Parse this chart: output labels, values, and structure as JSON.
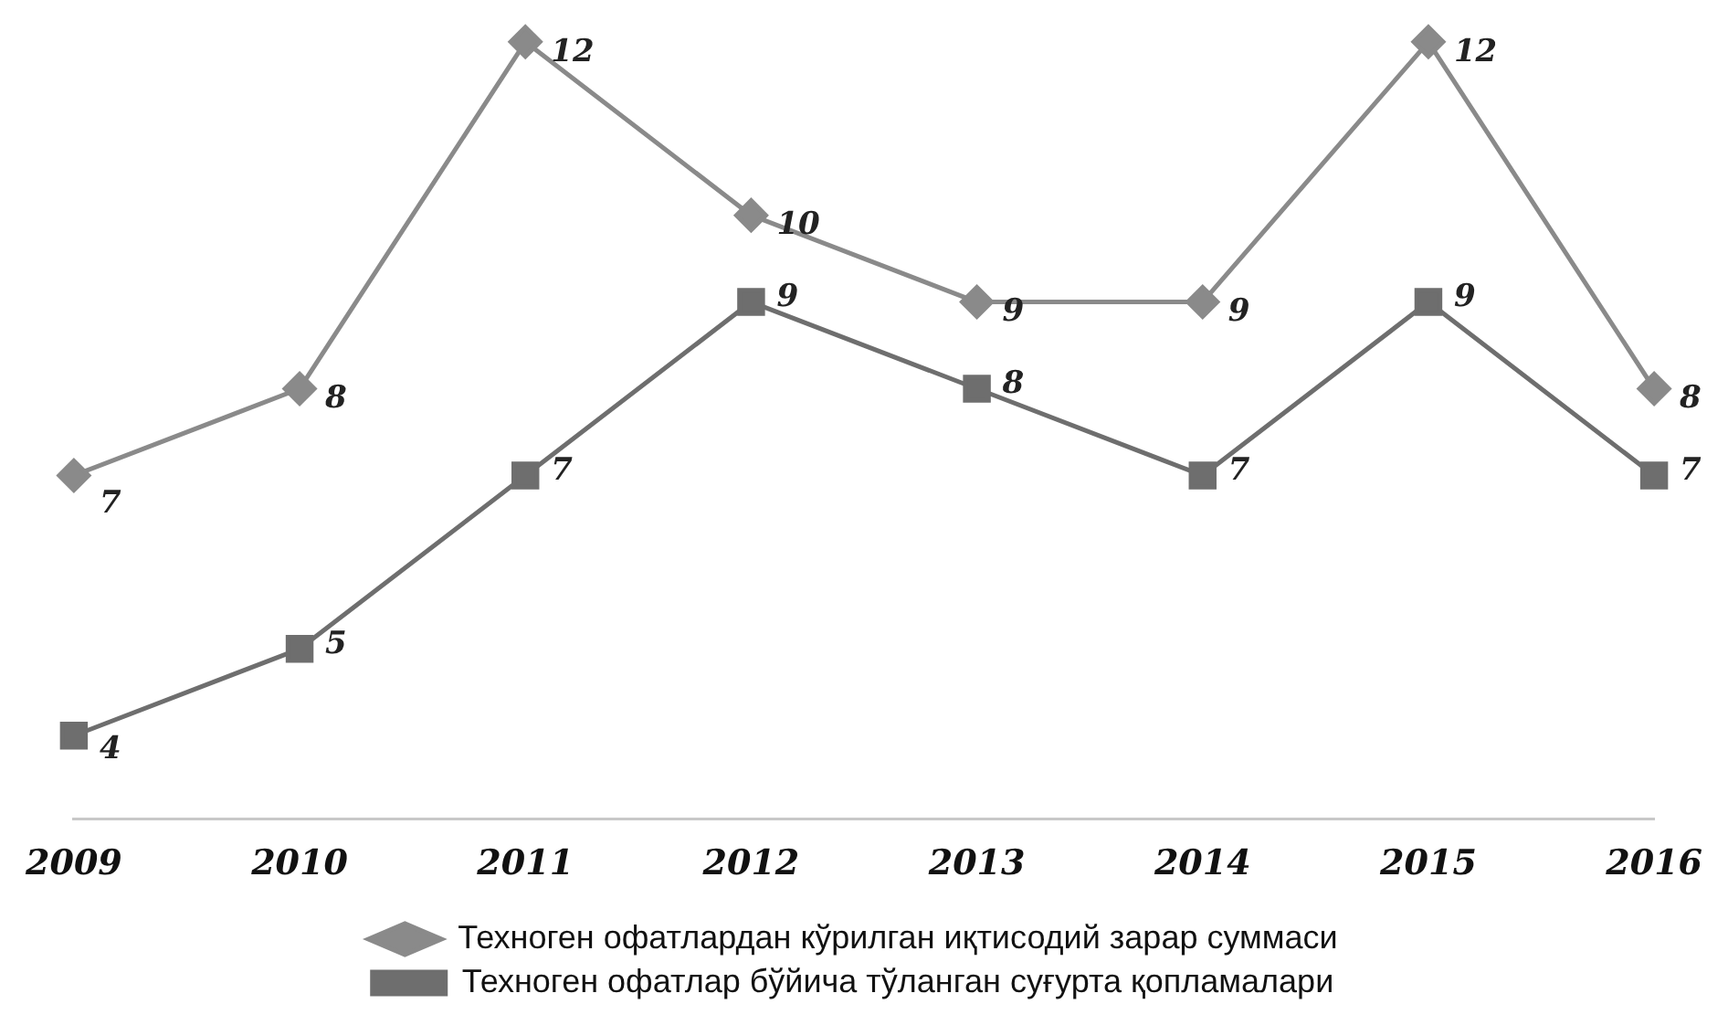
{
  "chart_data": {
    "type": "line",
    "categories": [
      "2009",
      "2010",
      "2011",
      "2012",
      "2013",
      "2014",
      "2015",
      "2016"
    ],
    "series": [
      {
        "name": "Техноген офатлардан кўрилган иқтисодий зарар суммаси",
        "color": "#8a8a8a",
        "marker": "diamond",
        "values": [
          7,
          8,
          12,
          10,
          9,
          9,
          12,
          8
        ]
      },
      {
        "name": "Техноген офатлар бўйича тўланган суғурта қопламалари",
        "color": "#6e6e6e",
        "marker": "square",
        "values": [
          4,
          5,
          7,
          9,
          8,
          7,
          9,
          7
        ]
      }
    ],
    "data_labels": true,
    "grid": false,
    "legend": "bottom",
    "line_style": "solid"
  }
}
